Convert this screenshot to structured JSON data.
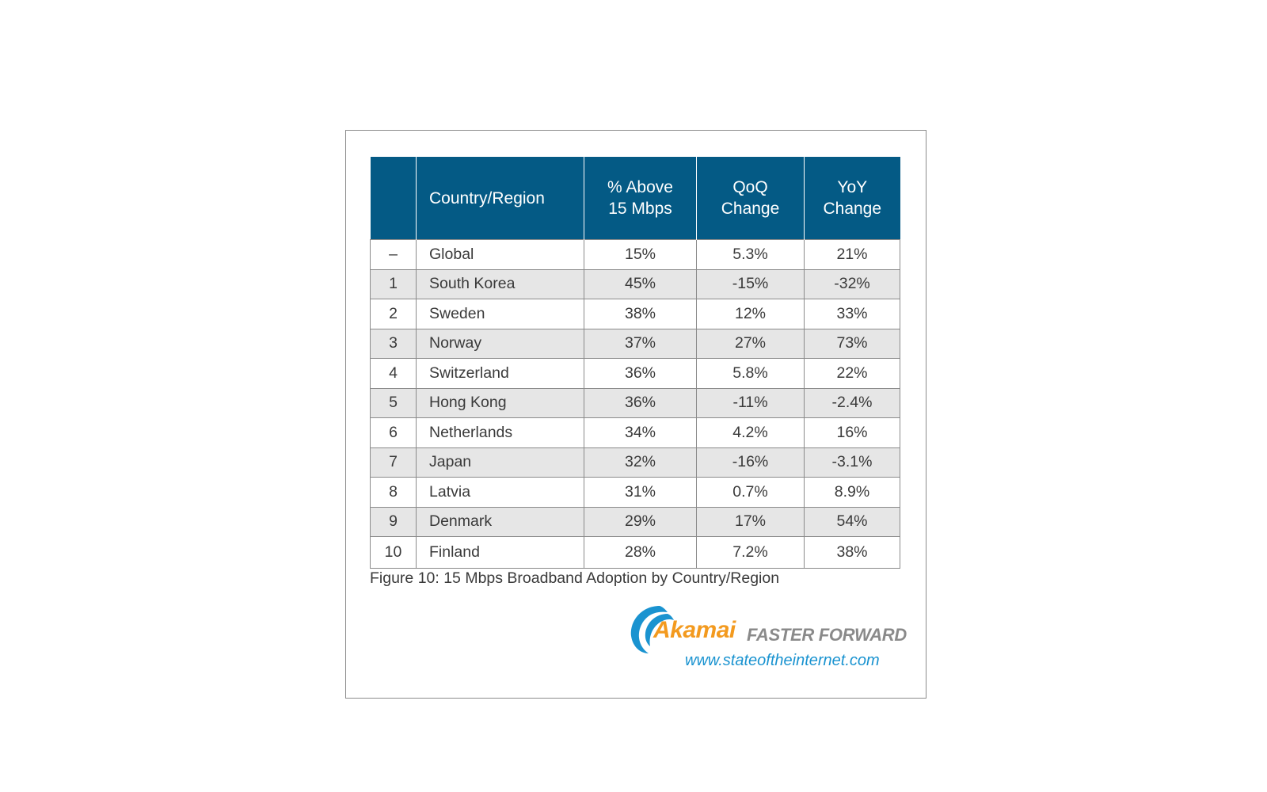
{
  "table": {
    "headers": [
      "",
      "Country/Region",
      "% Above",
      "15 Mbps",
      "QoQ",
      "Change",
      "YoY",
      "Change"
    ],
    "header": {
      "rank": "",
      "country": "Country/Region",
      "above_l1": "% Above",
      "above_l2": "15 Mbps",
      "qoq_l1": "QoQ",
      "qoq_l2": "Change",
      "yoy_l1": "YoY",
      "yoy_l2": "Change"
    },
    "rows": [
      {
        "rank": "–",
        "country": "Global",
        "above": "15%",
        "qoq": "5.3%",
        "yoy": "21%"
      },
      {
        "rank": "1",
        "country": "South Korea",
        "above": "45%",
        "qoq": "-15%",
        "yoy": "-32%"
      },
      {
        "rank": "2",
        "country": "Sweden",
        "above": "38%",
        "qoq": "12%",
        "yoy": "33%"
      },
      {
        "rank": "3",
        "country": "Norway",
        "above": "37%",
        "qoq": "27%",
        "yoy": "73%"
      },
      {
        "rank": "4",
        "country": "Switzerland",
        "above": "36%",
        "qoq": "5.8%",
        "yoy": "22%"
      },
      {
        "rank": "5",
        "country": "Hong Kong",
        "above": "36%",
        "qoq": "-11%",
        "yoy": "-2.4%"
      },
      {
        "rank": "6",
        "country": "Netherlands",
        "above": "34%",
        "qoq": "4.2%",
        "yoy": "16%"
      },
      {
        "rank": "7",
        "country": "Japan",
        "above": "32%",
        "qoq": "-16%",
        "yoy": "-3.1%"
      },
      {
        "rank": "8",
        "country": "Latvia",
        "above": "31%",
        "qoq": "0.7%",
        "yoy": "8.9%"
      },
      {
        "rank": "9",
        "country": "Denmark",
        "above": "29%",
        "qoq": "17%",
        "yoy": "54%"
      },
      {
        "rank": "10",
        "country": "Finland",
        "above": "28%",
        "qoq": "7.2%",
        "yoy": "38%"
      }
    ]
  },
  "caption": "Figure 10: 15 Mbps Broadband Adoption by Country/Region",
  "logo": {
    "brand": "Akamai",
    "tagline": "FASTER FORWARD",
    "url": "www.stateoftheinternet.com"
  },
  "colors": {
    "header_bg": "#045a85",
    "shaded_row": "#e6e6e6",
    "brand_orange": "#f39a1f",
    "brand_blue": "#1a93d0"
  }
}
